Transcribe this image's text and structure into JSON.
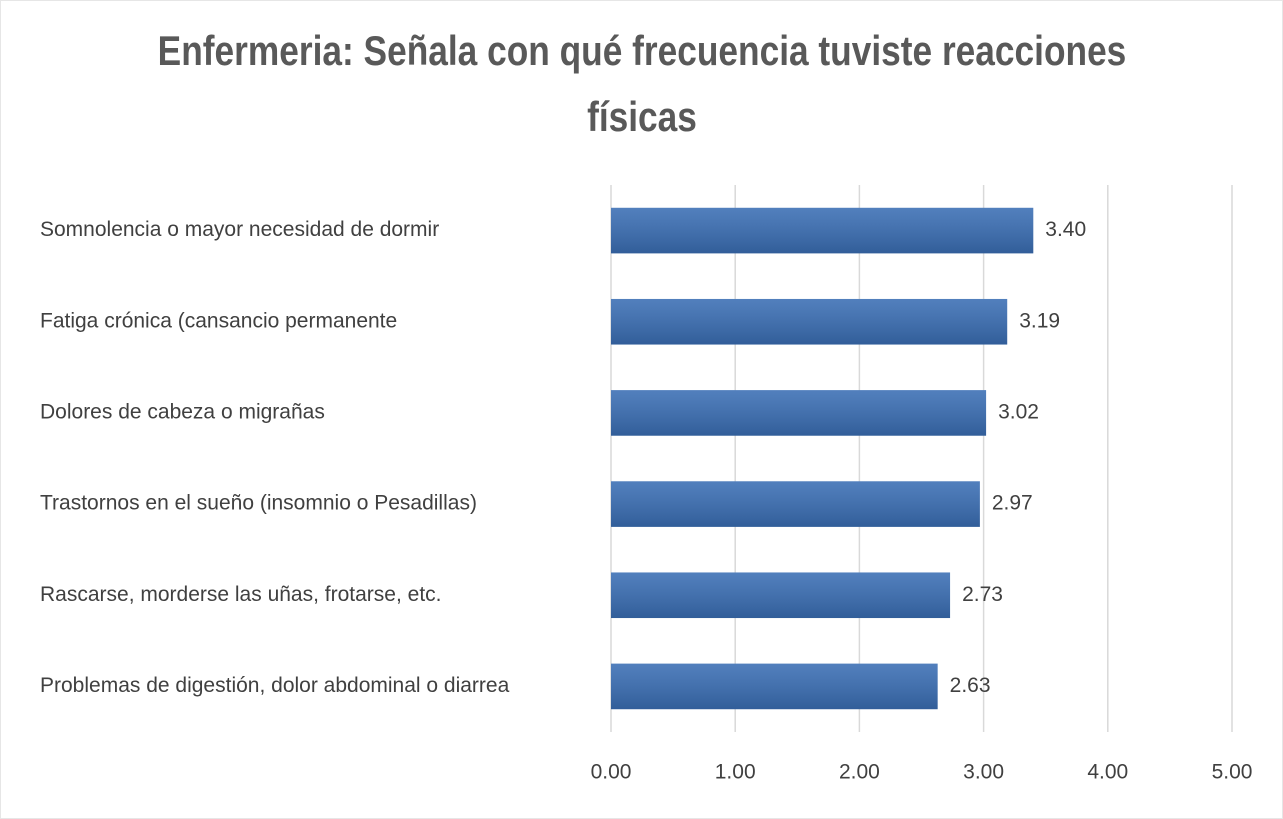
{
  "chart_data": {
    "type": "bar",
    "orientation": "horizontal",
    "title": "Enfermeria: Señala con qué frecuencia tuviste reacciones físicas",
    "categories": [
      "Somnolencia o mayor necesidad de dormir",
      "Fatiga crónica (cansancio permanente",
      "Dolores de cabeza o migrañas",
      "Trastornos en el sueño (insomnio o Pesadillas)",
      "Rascarse, morderse las uñas, frotarse, etc.",
      "Problemas de digestión, dolor abdominal o diarrea"
    ],
    "values": [
      3.4,
      3.19,
      3.02,
      2.97,
      2.73,
      2.63
    ],
    "value_labels": [
      "3.40",
      "3.19",
      "3.02",
      "2.97",
      "2.73",
      "2.63"
    ],
    "color": "#3a6eb4",
    "xlim": [
      0,
      5
    ],
    "xticks": [
      {
        "value": 0,
        "label": "0.00"
      },
      {
        "value": 1,
        "label": "1.00"
      },
      {
        "value": 2,
        "label": "2.00"
      },
      {
        "value": 3,
        "label": "3.00"
      },
      {
        "value": 4,
        "label": "4.00"
      },
      {
        "value": 5,
        "label": "5.00"
      }
    ],
    "grid": true
  }
}
